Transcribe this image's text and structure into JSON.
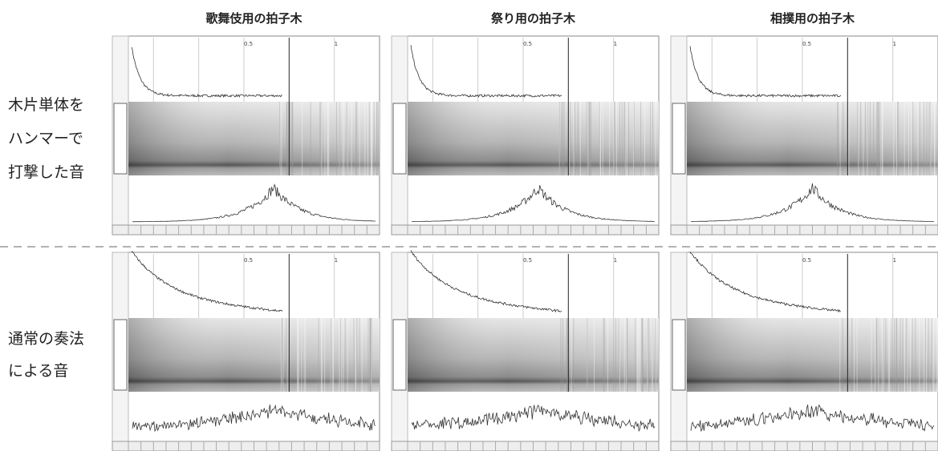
{
  "column_titles": [
    "歌舞伎用の拍子木",
    "祭り用の拍子木",
    "相撲用の拍子木"
  ],
  "row_labels": [
    [
      "木片単体を",
      "ハンマーで",
      "打撃した音"
    ],
    [
      "通常の奏法",
      "による音"
    ]
  ],
  "panel_marks": [
    "0.5",
    "1"
  ]
}
